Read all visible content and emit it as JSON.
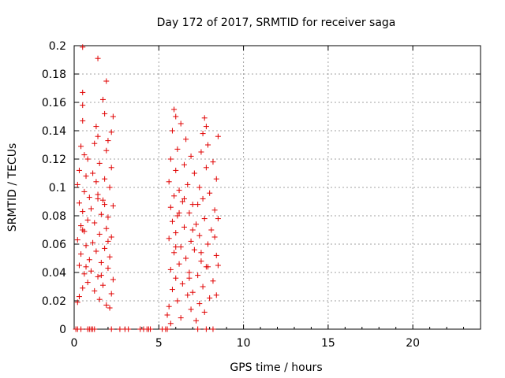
{
  "chart_data": {
    "type": "scatter",
    "title": "Day 172 of 2017, SRMTID for receiver saga",
    "xlabel": "GPS time / hours",
    "ylabel": "SRMTID / TECUs",
    "xlim": [
      0,
      24
    ],
    "ylim": [
      0,
      0.2
    ],
    "grid": true,
    "marker": "+",
    "color": "#e00000",
    "x_ticks": [
      0,
      5,
      10,
      15,
      20
    ],
    "x_tick_labels": [
      "0",
      "5",
      "10",
      "15",
      "20"
    ],
    "y_ticks": [
      0,
      0.02,
      0.04,
      0.06,
      0.08,
      0.1,
      0.12,
      0.14,
      0.16,
      0.18,
      0.2
    ],
    "y_tick_labels": [
      "0",
      "0.02",
      "0.04",
      "0.06",
      "0.08",
      "0.1",
      "0.12",
      "0.14",
      "0.16",
      "0.18",
      "0.2"
    ],
    "series": [
      {
        "name": "SRMTID",
        "points": [
          [
            0.1,
            0
          ],
          [
            0.2,
            0
          ],
          [
            0.4,
            0
          ],
          [
            0.8,
            0
          ],
          [
            0.9,
            0
          ],
          [
            1.0,
            0
          ],
          [
            1.1,
            0
          ],
          [
            1.2,
            0
          ],
          [
            2.2,
            0
          ],
          [
            2.7,
            0
          ],
          [
            3.0,
            0
          ],
          [
            3.2,
            0
          ],
          [
            3.9,
            0
          ],
          [
            4.1,
            0
          ],
          [
            4.3,
            0
          ],
          [
            4.4,
            0
          ],
          [
            4.5,
            0
          ],
          [
            5.2,
            0
          ],
          [
            5.4,
            0
          ],
          [
            5.5,
            0
          ],
          [
            7.3,
            0
          ],
          [
            7.8,
            0
          ],
          [
            8.2,
            0
          ],
          [
            0.5,
            0.199
          ],
          [
            1.4,
            0.191
          ],
          [
            1.9,
            0.175
          ],
          [
            0.5,
            0.167
          ],
          [
            1.7,
            0.162
          ],
          [
            0.5,
            0.158
          ],
          [
            1.8,
            0.152
          ],
          [
            2.3,
            0.15
          ],
          [
            0.5,
            0.147
          ],
          [
            1.3,
            0.143
          ],
          [
            2.2,
            0.139
          ],
          [
            1.4,
            0.136
          ],
          [
            2.0,
            0.133
          ],
          [
            1.2,
            0.131
          ],
          [
            0.4,
            0.129
          ],
          [
            1.9,
            0.126
          ],
          [
            0.6,
            0.123
          ],
          [
            0.8,
            0.12
          ],
          [
            1.5,
            0.117
          ],
          [
            2.2,
            0.114
          ],
          [
            0.3,
            0.112
          ],
          [
            1.1,
            0.11
          ],
          [
            0.7,
            0.108
          ],
          [
            1.8,
            0.106
          ],
          [
            1.3,
            0.104
          ],
          [
            0.2,
            0.102
          ],
          [
            2.1,
            0.1
          ],
          [
            0.6,
            0.097
          ],
          [
            1.4,
            0.095
          ],
          [
            0.9,
            0.093
          ],
          [
            1.7,
            0.091
          ],
          [
            0.3,
            0.089
          ],
          [
            2.3,
            0.087
          ],
          [
            1.0,
            0.085
          ],
          [
            0.5,
            0.083
          ],
          [
            1.6,
            0.081
          ],
          [
            2.0,
            0.079
          ],
          [
            0.8,
            0.077
          ],
          [
            1.2,
            0.075
          ],
          [
            0.4,
            0.073
          ],
          [
            1.9,
            0.071
          ],
          [
            0.6,
            0.069
          ],
          [
            1.5,
            0.067
          ],
          [
            2.2,
            0.065
          ],
          [
            0.2,
            0.063
          ],
          [
            1.1,
            0.061
          ],
          [
            0.7,
            0.059
          ],
          [
            1.8,
            0.057
          ],
          [
            1.3,
            0.055
          ],
          [
            0.4,
            0.053
          ],
          [
            2.1,
            0.051
          ],
          [
            0.9,
            0.049
          ],
          [
            1.6,
            0.047
          ],
          [
            0.3,
            0.045
          ],
          [
            2.0,
            0.043
          ],
          [
            1.0,
            0.041
          ],
          [
            0.6,
            0.039
          ],
          [
            1.4,
            0.037
          ],
          [
            2.3,
            0.035
          ],
          [
            0.8,
            0.033
          ],
          [
            1.7,
            0.031
          ],
          [
            0.5,
            0.029
          ],
          [
            1.2,
            0.027
          ],
          [
            2.2,
            0.025
          ],
          [
            0.3,
            0.023
          ],
          [
            1.5,
            0.021
          ],
          [
            0.2,
            0.019
          ],
          [
            1.9,
            0.017
          ],
          [
            2.1,
            0.015
          ],
          [
            1.4,
            0.092
          ],
          [
            0.5,
            0.07
          ],
          [
            1.8,
            0.088
          ],
          [
            0.7,
            0.044
          ],
          [
            1.6,
            0.038
          ],
          [
            2.0,
            0.062
          ],
          [
            5.9,
            0.155
          ],
          [
            6.0,
            0.15
          ],
          [
            6.3,
            0.145
          ],
          [
            7.7,
            0.149
          ],
          [
            7.8,
            0.143
          ],
          [
            5.8,
            0.14
          ],
          [
            7.6,
            0.138
          ],
          [
            6.6,
            0.134
          ],
          [
            8.5,
            0.136
          ],
          [
            7.9,
            0.13
          ],
          [
            6.1,
            0.127
          ],
          [
            7.5,
            0.125
          ],
          [
            6.9,
            0.122
          ],
          [
            5.7,
            0.12
          ],
          [
            8.2,
            0.118
          ],
          [
            6.5,
            0.116
          ],
          [
            7.8,
            0.114
          ],
          [
            6.0,
            0.112
          ],
          [
            7.1,
            0.11
          ],
          [
            8.4,
            0.106
          ],
          [
            5.6,
            0.104
          ],
          [
            6.7,
            0.102
          ],
          [
            7.4,
            0.1
          ],
          [
            6.2,
            0.098
          ],
          [
            8.0,
            0.096
          ],
          [
            5.9,
            0.094
          ],
          [
            7.6,
            0.092
          ],
          [
            6.4,
            0.09
          ],
          [
            7.0,
            0.088
          ],
          [
            5.7,
            0.086
          ],
          [
            8.3,
            0.084
          ],
          [
            6.8,
            0.082
          ],
          [
            6.1,
            0.08
          ],
          [
            7.7,
            0.078
          ],
          [
            5.8,
            0.076
          ],
          [
            7.2,
            0.074
          ],
          [
            6.5,
            0.072
          ],
          [
            8.1,
            0.07
          ],
          [
            6.0,
            0.068
          ],
          [
            7.4,
            0.066
          ],
          [
            5.6,
            0.064
          ],
          [
            6.9,
            0.062
          ],
          [
            7.9,
            0.06
          ],
          [
            6.3,
            0.058
          ],
          [
            7.1,
            0.056
          ],
          [
            5.9,
            0.054
          ],
          [
            8.4,
            0.052
          ],
          [
            6.6,
            0.05
          ],
          [
            7.5,
            0.048
          ],
          [
            6.2,
            0.046
          ],
          [
            7.8,
            0.044
          ],
          [
            5.7,
            0.042
          ],
          [
            6.8,
            0.04
          ],
          [
            7.3,
            0.038
          ],
          [
            6.0,
            0.036
          ],
          [
            8.2,
            0.034
          ],
          [
            6.4,
            0.032
          ],
          [
            7.6,
            0.03
          ],
          [
            5.8,
            0.028
          ],
          [
            7.0,
            0.026
          ],
          [
            6.7,
            0.024
          ],
          [
            8.0,
            0.022
          ],
          [
            6.1,
            0.02
          ],
          [
            7.4,
            0.018
          ],
          [
            5.6,
            0.016
          ],
          [
            6.9,
            0.014
          ],
          [
            7.7,
            0.012
          ],
          [
            5.5,
            0.01
          ],
          [
            6.3,
            0.008
          ],
          [
            7.2,
            0.006
          ],
          [
            5.7,
            0.004
          ],
          [
            8.5,
            0.078
          ],
          [
            8.3,
            0.065
          ],
          [
            8.5,
            0.045
          ],
          [
            8.4,
            0.024
          ],
          [
            6.5,
            0.092
          ],
          [
            7.0,
            0.07
          ],
          [
            6.2,
            0.082
          ],
          [
            7.5,
            0.054
          ],
          [
            6.8,
            0.036
          ],
          [
            7.9,
            0.044
          ],
          [
            6.0,
            0.058
          ],
          [
            7.3,
            0.088
          ]
        ]
      }
    ]
  }
}
